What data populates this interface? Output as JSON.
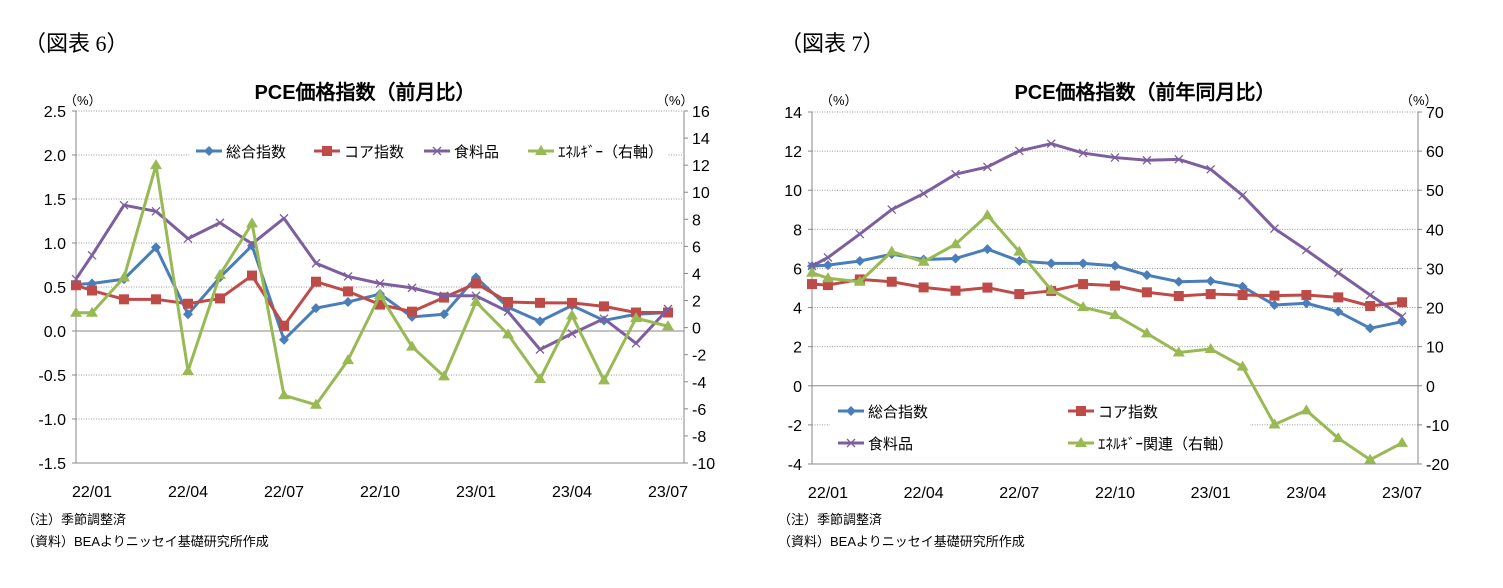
{
  "figures": [
    {
      "label": "（図表 6）",
      "title": "PCE価格指数（前月比）",
      "left_unit": "（%）",
      "right_unit": "（%）"
    },
    {
      "label": "（図表 7）",
      "title": "PCE価格指数（前年同月比）",
      "left_unit": "（%）",
      "right_unit": "（%）"
    }
  ],
  "notes": [
    "（注）季節調整済",
    "（資料）BEAよりニッセイ基礎研究所作成"
  ],
  "colors": {
    "total": "#4a7ebb",
    "core": "#be4b48",
    "food": "#7d5fa0",
    "energy": "#98b954"
  },
  "chart_data": [
    {
      "type": "line",
      "title": "PCE価格指数（前月比）",
      "x_tick_labels": [
        "22/01",
        "22/04",
        "22/07",
        "22/10",
        "23/01",
        "23/04",
        "23/07"
      ],
      "y_left": {
        "range": [
          -1.5,
          2.5
        ],
        "step": 0.5,
        "ticks": [
          "-1.5",
          "-1.0",
          "-0.5",
          "0.0",
          "0.5",
          "1.0",
          "1.5",
          "2.0",
          "2.5"
        ]
      },
      "y_right": {
        "range": [
          -10,
          16
        ],
        "step": 2,
        "ticks": [
          "-10",
          "-8",
          "-6",
          "-4",
          "-2",
          "0",
          "2",
          "4",
          "6",
          "8",
          "10",
          "12",
          "14",
          "16"
        ]
      },
      "grid": true,
      "legend": "top-right",
      "series": [
        {
          "name": "総合指数",
          "axis": "left",
          "marker": "diamond",
          "color": "#4a7ebb",
          "values": [
            0.53,
            0.54,
            0.59,
            0.95,
            0.19,
            0.61,
            0.97,
            -0.1,
            0.26,
            0.33,
            0.42,
            0.16,
            0.19,
            0.61,
            0.27,
            0.11,
            0.29,
            0.12,
            0.19,
            0.21
          ]
        },
        {
          "name": "コア指数",
          "axis": "left",
          "marker": "square",
          "color": "#be4b48",
          "values": [
            0.52,
            0.46,
            0.36,
            0.36,
            0.31,
            0.37,
            0.63,
            0.06,
            0.56,
            0.45,
            0.3,
            0.22,
            0.38,
            0.54,
            0.33,
            0.32,
            0.32,
            0.28,
            0.21,
            0.21
          ]
        },
        {
          "name": "食料品",
          "axis": "left",
          "marker": "x",
          "color": "#7d5fa0",
          "values": [
            0.59,
            0.86,
            1.43,
            1.36,
            1.05,
            1.23,
            0.99,
            1.28,
            0.77,
            0.62,
            0.54,
            0.49,
            0.4,
            0.4,
            0.22,
            -0.21,
            -0.03,
            0.14,
            -0.14,
            0.25
          ]
        },
        {
          "name": "ｴﾈﾙｷﾞｰ（右軸）",
          "axis": "right",
          "marker": "triangle",
          "color": "#98b954",
          "values": [
            1.1,
            1.1,
            3.7,
            12.0,
            -3.2,
            3.9,
            7.7,
            -5.0,
            -5.7,
            -2.4,
            2.4,
            -1.4,
            -3.6,
            1.9,
            -0.5,
            -3.8,
            0.9,
            -3.9,
            0.7,
            0.1
          ]
        }
      ]
    },
    {
      "type": "line",
      "title": "PCE価格指数（前年同月比）",
      "x_tick_labels": [
        "22/01",
        "22/04",
        "22/07",
        "22/10",
        "23/01",
        "23/04",
        "23/07"
      ],
      "y_left": {
        "range": [
          -4,
          14
        ],
        "step": 2,
        "ticks": [
          "-4",
          "-2",
          "0",
          "2",
          "4",
          "6",
          "8",
          "10",
          "12",
          "14"
        ]
      },
      "y_right": {
        "range": [
          -20,
          70
        ],
        "step": 10,
        "ticks": [
          "-20",
          "-10",
          "0",
          "10",
          "20",
          "30",
          "40",
          "50",
          "60",
          "70"
        ]
      },
      "grid": true,
      "legend": "bottom-left",
      "series": [
        {
          "name": "総合指数",
          "axis": "left",
          "marker": "diamond",
          "color": "#4a7ebb",
          "values": [
            6.12,
            6.17,
            6.38,
            6.73,
            6.46,
            6.51,
            6.99,
            6.38,
            6.26,
            6.26,
            6.14,
            5.66,
            5.32,
            5.36,
            5.07,
            4.13,
            4.22,
            3.79,
            2.94,
            3.28
          ]
        },
        {
          "name": "コア指数",
          "axis": "left",
          "marker": "square",
          "color": "#be4b48",
          "values": [
            5.2,
            5.15,
            5.44,
            5.32,
            5.03,
            4.86,
            5.02,
            4.69,
            4.85,
            5.2,
            5.12,
            4.78,
            4.59,
            4.69,
            4.64,
            4.61,
            4.64,
            4.52,
            4.08,
            4.27
          ]
        },
        {
          "name": "食料品",
          "axis": "left",
          "marker": "x",
          "color": "#7d5fa0",
          "values": [
            6.12,
            6.56,
            7.76,
            9.01,
            9.83,
            10.82,
            11.19,
            12.01,
            12.38,
            11.9,
            11.67,
            11.53,
            11.58,
            11.07,
            9.74,
            8.04,
            6.94,
            5.78,
            4.64,
            3.54
          ]
        },
        {
          "name": "ｴﾈﾙｷﾞｰ関連（右軸）",
          "axis": "right",
          "marker": "triangle",
          "color": "#98b954",
          "values": [
            28.9,
            27.5,
            26.6,
            34.3,
            31.7,
            36.2,
            43.6,
            34.3,
            24.5,
            20.1,
            18.1,
            13.4,
            8.5,
            9.4,
            4.9,
            -9.9,
            -6.3,
            -13.4,
            -18.9,
            -14.6
          ]
        }
      ]
    }
  ]
}
